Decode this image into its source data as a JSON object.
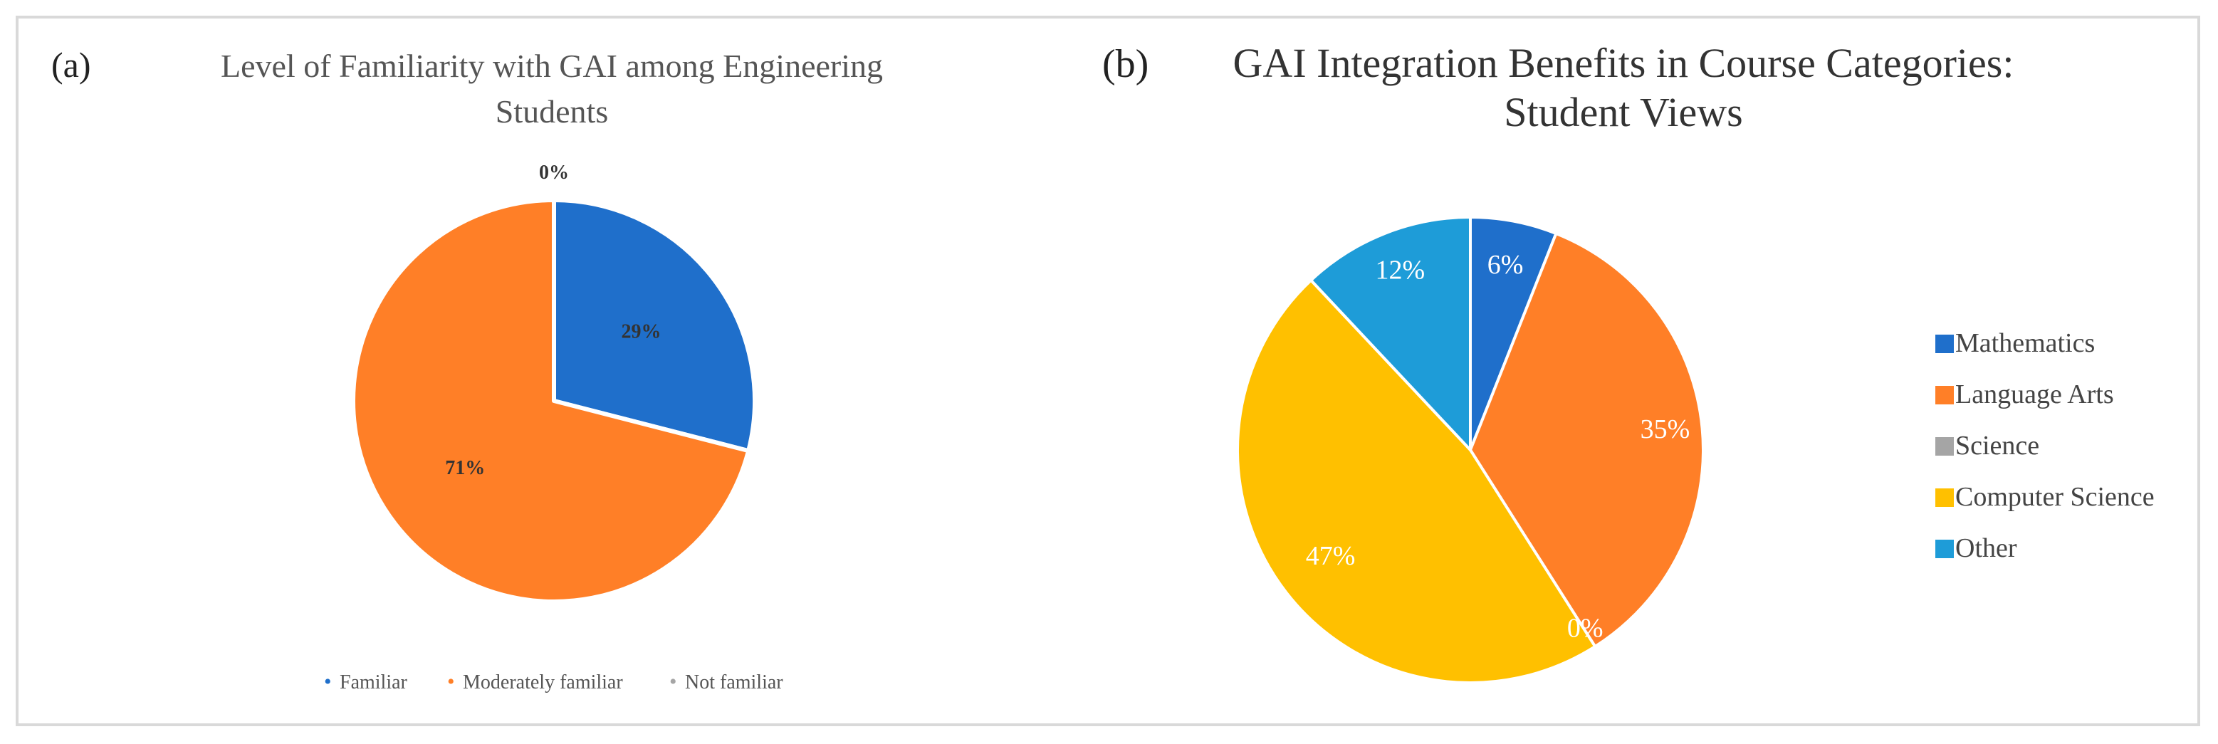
{
  "chart_data": [
    {
      "type": "pie",
      "panel_label": "(a)",
      "title_lines": [
        "Level of Familiarity with GAI among Engineering",
        "Students"
      ],
      "slices": [
        {
          "label": "Familiar",
          "value": 29,
          "data_label": "29%",
          "color": "#1F6FCB"
        },
        {
          "label": "Moderately familiar",
          "value": 71,
          "data_label": "71%",
          "color": "#FF7F27"
        },
        {
          "label": "Not familiar",
          "value": 0,
          "data_label": "0%",
          "color": "#A5A5A5"
        }
      ],
      "legend_position": "bottom",
      "legend_marker": "•"
    },
    {
      "type": "pie",
      "panel_label": "(b)",
      "title_lines": [
        "GAI Integration Benefits in Course Categories:",
        "Student Views"
      ],
      "slices": [
        {
          "label": "Mathematics",
          "value": 6,
          "data_label": "6%",
          "color": "#1F6FCB"
        },
        {
          "label": "Language Arts",
          "value": 35,
          "data_label": "35%",
          "color": "#FF7F27"
        },
        {
          "label": "Science",
          "value": 0,
          "data_label": "0%",
          "color": "#A5A5A5"
        },
        {
          "label": "Computer Science",
          "value": 47,
          "data_label": "47%",
          "color": "#FFC000"
        },
        {
          "label": "Other",
          "value": 12,
          "data_label": "12%",
          "color": "#1E9CD8"
        }
      ],
      "legend_position": "right"
    }
  ]
}
